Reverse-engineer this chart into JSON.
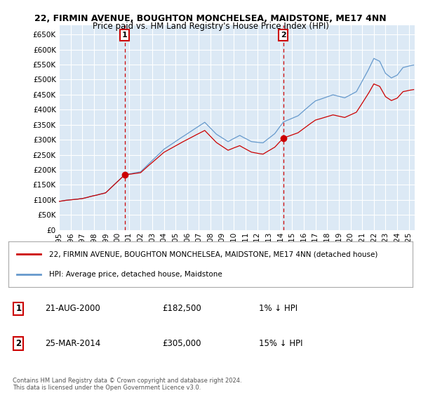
{
  "title": "22, FIRMIN AVENUE, BOUGHTON MONCHELSEA, MAIDSTONE, ME17 4NN",
  "subtitle": "Price paid vs. HM Land Registry's House Price Index (HPI)",
  "legend_label_red": "22, FIRMIN AVENUE, BOUGHTON MONCHELSEA, MAIDSTONE, ME17 4NN (detached house)",
  "legend_label_blue": "HPI: Average price, detached house, Maidstone",
  "annotation1_date": "21-AUG-2000",
  "annotation1_price": "£182,500",
  "annotation1_hpi": "1% ↓ HPI",
  "annotation2_date": "25-MAR-2014",
  "annotation2_price": "£305,000",
  "annotation2_hpi": "15% ↓ HPI",
  "footnote": "Contains HM Land Registry data © Crown copyright and database right 2024.\nThis data is licensed under the Open Government Licence v3.0.",
  "ylim": [
    0,
    680000
  ],
  "yticks": [
    0,
    50000,
    100000,
    150000,
    200000,
    250000,
    300000,
    350000,
    400000,
    450000,
    500000,
    550000,
    600000,
    650000
  ],
  "background_color": "#ffffff",
  "plot_bg_color": "#dce9f5",
  "grid_color": "#ffffff",
  "red_color": "#cc0000",
  "blue_color": "#6699cc",
  "vline_color": "#cc0000",
  "sale1_x": 2000.644,
  "sale1_y": 182500,
  "sale2_x": 2014.23,
  "sale2_y": 305000,
  "xmin": 1995.0,
  "xmax": 2025.5
}
